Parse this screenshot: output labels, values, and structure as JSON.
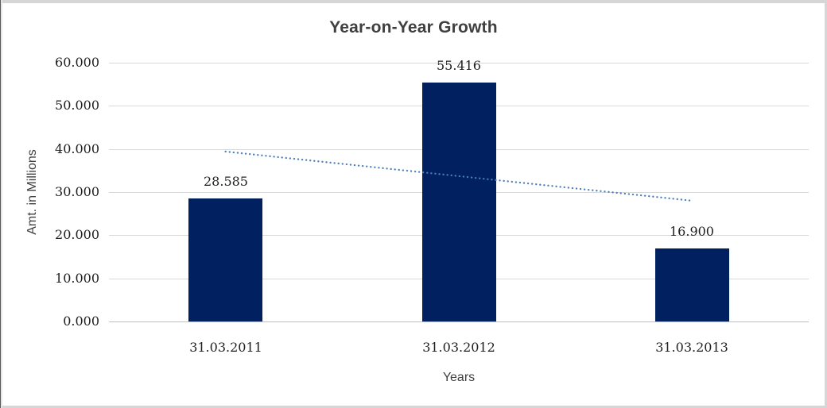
{
  "chart_data": {
    "type": "bar",
    "title": "Year-on-Year Growth",
    "xlabel": "Years",
    "ylabel": "Amt. in Millions",
    "categories": [
      "31.03.2011",
      "31.03.2012",
      "31.03.2013"
    ],
    "values": [
      28585,
      55416,
      16900
    ],
    "value_labels": [
      "28.585",
      "55.416",
      "16.900"
    ],
    "y_ticks": [
      "60.000",
      "50.000",
      "40.000",
      "30.000",
      "20.000",
      "10.000",
      "0.000"
    ],
    "ylim": [
      0,
      60000
    ],
    "grid": true,
    "legend": "none",
    "trendline": {
      "type": "linear",
      "style": "dotted",
      "start_value": 39400,
      "end_value": 28000,
      "x_span": [
        "31.03.2011",
        "31.03.2013"
      ]
    },
    "colors": {
      "bar": "#002060",
      "trend": "#4a7ebb",
      "grid": "#d9d9d9",
      "axis_line": "#bfbfbf",
      "label_text": "#1f1f1f",
      "title_text": "#3f3f3f",
      "frame": "#d6d6d6"
    }
  }
}
